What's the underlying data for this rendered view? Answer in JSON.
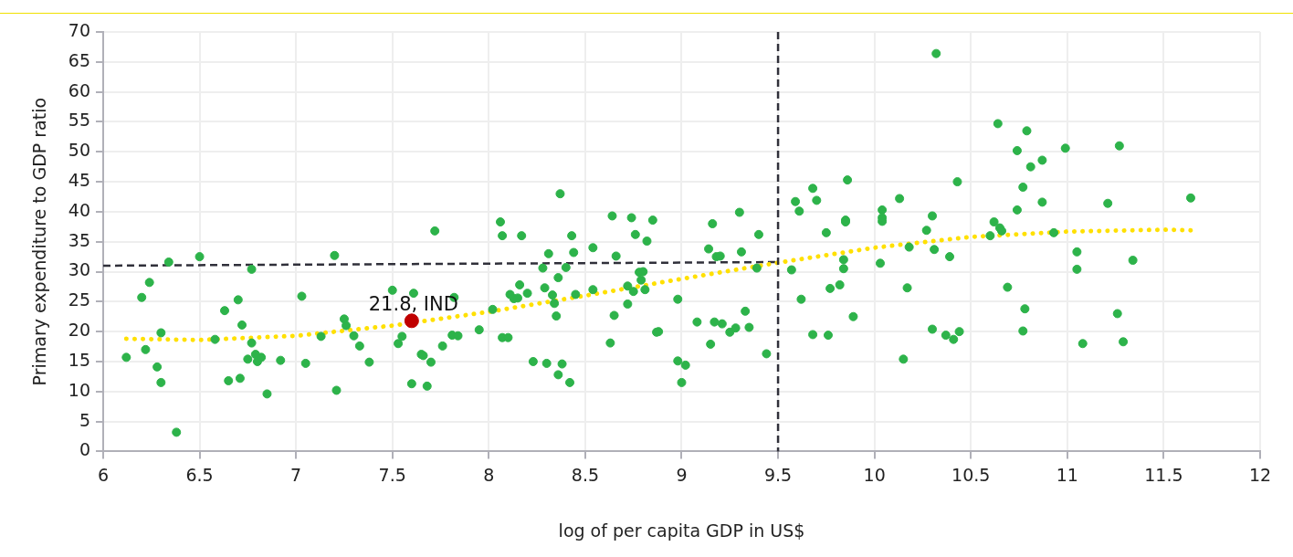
{
  "chart_data": {
    "type": "scatter",
    "xlabel": "log of per capita GDP in US$",
    "ylabel": "Primary expenditure to GDP ratio",
    "xlim": [
      6,
      12
    ],
    "xticks": [
      6,
      6.5,
      7,
      7.5,
      8,
      8.5,
      9,
      9.5,
      10,
      10.5,
      11,
      11.5,
      12
    ],
    "ylim": [
      0,
      70
    ],
    "yticks": [
      0,
      5,
      10,
      15,
      20,
      25,
      30,
      35,
      40,
      45,
      50,
      55,
      60,
      65,
      70
    ],
    "grid": true,
    "legend": false,
    "marker": "circle",
    "series": [
      {
        "type": "scatter",
        "color": "#2db34a",
        "x": [
          6.12,
          6.2,
          6.22,
          6.24,
          6.28,
          6.3,
          6.3,
          6.34,
          6.38,
          6.5,
          6.58,
          6.63,
          6.65,
          6.7,
          6.71,
          6.72,
          6.75,
          6.77,
          6.77,
          6.79,
          6.8,
          6.82,
          6.85,
          6.92,
          7.03,
          7.05,
          7.13,
          7.2,
          7.21,
          7.25,
          7.26,
          7.3,
          7.33,
          7.38,
          7.5,
          7.53,
          7.55,
          7.6,
          7.61,
          7.65,
          7.66,
          7.68,
          7.7,
          7.72,
          7.76,
          7.81,
          7.82,
          7.84,
          7.95,
          8.02,
          8.06,
          8.07,
          8.07,
          8.1,
          8.11,
          8.13,
          8.15,
          8.17,
          8.16,
          8.2,
          8.23,
          8.28,
          8.29,
          8.3,
          8.31,
          8.33,
          8.34,
          8.35,
          8.36,
          8.36,
          8.37,
          8.38,
          8.4,
          8.42,
          8.43,
          8.44,
          8.45,
          8.54,
          8.54,
          8.63,
          8.64,
          8.65,
          8.66,
          8.72,
          8.72,
          8.74,
          8.75,
          8.76,
          8.78,
          8.79,
          8.8,
          8.81,
          8.82,
          8.85,
          8.87,
          8.88,
          8.98,
          8.98,
          9.0,
          9.02,
          9.08,
          9.14,
          9.15,
          9.16,
          9.17,
          9.18,
          9.2,
          9.21,
          9.25,
          9.28,
          9.3,
          9.31,
          9.33,
          9.35,
          9.39,
          9.4,
          9.44,
          9.57,
          9.59,
          9.61,
          9.62,
          9.68,
          9.68,
          9.7,
          9.75,
          9.76,
          9.77,
          9.82,
          9.84,
          9.84,
          9.85,
          9.85,
          9.86,
          9.89,
          10.03,
          10.04,
          10.04,
          10.04,
          10.13,
          10.15,
          10.17,
          10.18,
          10.27,
          10.3,
          10.3,
          10.31,
          10.32,
          10.37,
          10.39,
          10.41,
          10.43,
          10.44,
          10.6,
          10.62,
          10.64,
          10.65,
          10.66,
          10.69,
          10.74,
          10.74,
          10.77,
          10.77,
          10.78,
          10.79,
          10.81,
          10.87,
          10.87,
          10.93,
          10.99,
          11.05,
          11.05,
          11.08,
          11.21,
          11.26,
          11.27,
          11.29,
          11.34,
          11.64
        ],
        "values": [
          15.7,
          25.7,
          17,
          28.2,
          14.1,
          11.5,
          19.8,
          31.6,
          3.2,
          32.5,
          18.7,
          23.5,
          11.8,
          25.3,
          12.2,
          21.1,
          15.4,
          18.1,
          30.4,
          16.2,
          15,
          15.7,
          9.6,
          15.2,
          25.9,
          14.7,
          19.2,
          32.7,
          10.2,
          22.1,
          21,
          19.3,
          17.6,
          14.9,
          26.9,
          18,
          19.2,
          11.3,
          26.4,
          16.2,
          16,
          10.9,
          14.9,
          36.8,
          17.6,
          19.4,
          25.7,
          19.3,
          20.3,
          23.7,
          38.3,
          36,
          19,
          19,
          26.2,
          25.5,
          25.6,
          36,
          27.8,
          26.4,
          15,
          30.6,
          27.3,
          14.7,
          33,
          26.1,
          24.7,
          22.6,
          29,
          12.8,
          43,
          14.6,
          30.7,
          11.5,
          36,
          33.2,
          26.2,
          34,
          27,
          18.1,
          39.3,
          22.7,
          32.6,
          27.6,
          24.6,
          39,
          26.7,
          36.2,
          29.9,
          28.6,
          30,
          27,
          35.1,
          38.6,
          19.9,
          20,
          25.4,
          15.1,
          11.5,
          14.4,
          21.6,
          33.8,
          17.9,
          38,
          21.6,
          32.5,
          32.6,
          21.3,
          19.9,
          20.6,
          39.9,
          33.3,
          23.4,
          20.7,
          30.6,
          36.2,
          16.3,
          30.3,
          41.7,
          40.1,
          25.4,
          19.5,
          43.9,
          41.9,
          36.5,
          19.4,
          27.2,
          27.8,
          32,
          30.5,
          38.6,
          38.3,
          45.3,
          22.5,
          31.4,
          40.3,
          38.4,
          39,
          42.2,
          15.4,
          27.3,
          34.1,
          36.9,
          39.3,
          20.4,
          33.7,
          66.4,
          19.4,
          32.5,
          18.7,
          45,
          20,
          36,
          38.3,
          54.7,
          37.3,
          36.8,
          27.4,
          50.2,
          40.3,
          44.1,
          20.1,
          23.8,
          53.5,
          47.5,
          48.6,
          41.6,
          36.5,
          50.6,
          33.3,
          30.4,
          18,
          41.4,
          23,
          51,
          18.3,
          31.9,
          42.3
        ]
      },
      {
        "type": "line",
        "color": "#ffe000",
        "line_style": "dotted",
        "marker": "none",
        "x": [
          6.12,
          6.5,
          7,
          7.5,
          8,
          8.5,
          9,
          9.5,
          10,
          10.5,
          11,
          11.5,
          11.65
        ],
        "values": [
          18.8,
          18.6,
          19.3,
          21,
          23.3,
          26,
          28.8,
          31.5,
          34,
          35.8,
          36.7,
          37,
          36.9
        ]
      },
      {
        "type": "line",
        "color": "#30303a",
        "line_style": "dashed",
        "marker": "none",
        "x": [
          6,
          9.5
        ],
        "values": [
          31,
          31.6
        ]
      },
      {
        "type": "scatter",
        "color": "#c00000",
        "x": [
          7.6
        ],
        "values": [
          21.8
        ]
      }
    ],
    "ref_lines": [
      {
        "axis": "x",
        "value": 9.5,
        "color": "#30303a",
        "line_style": "dashed"
      }
    ],
    "annotations": [
      {
        "text": "21.8, IND",
        "x": 7.6,
        "y": 21.8
      }
    ]
  }
}
